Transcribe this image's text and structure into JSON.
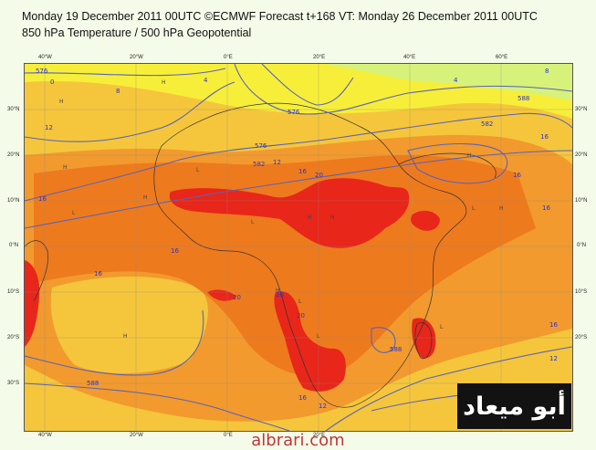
{
  "header": {
    "line1": "Monday 19 December 2011 00UTC ©ECMWF Forecast t+168 VT: Monday 26 December 2011 00UTC",
    "line2": "850 hPa Temperature / 500 hPa Geopotential"
  },
  "axes": {
    "lat_labels": [
      "30°N",
      "20°N",
      "10°N",
      "0°N",
      "10°S",
      "20°S",
      "30°S"
    ],
    "lon_labels": [
      "40°W",
      "20°W",
      "0°E",
      "20°E",
      "40°E",
      "60°E"
    ]
  },
  "map": {
    "region": "Africa and Atlantic Ocean",
    "temperature_contours": [
      "0",
      "4",
      "8",
      "12",
      "16",
      "20"
    ],
    "geopotential_contours": [
      "576",
      "582",
      "588"
    ],
    "colors": {
      "cool": "#f7f13a",
      "mild": "#f5c63b",
      "warm": "#f29a2e",
      "hot": "#ee7a1e",
      "very_hot": "#e8261a",
      "greenish": "#d7f27a",
      "contour": "#5a63b8",
      "coast": "#333333"
    }
  },
  "watermark": {
    "arabic_text": "أبو ميعاد",
    "site": "albrari.com"
  }
}
